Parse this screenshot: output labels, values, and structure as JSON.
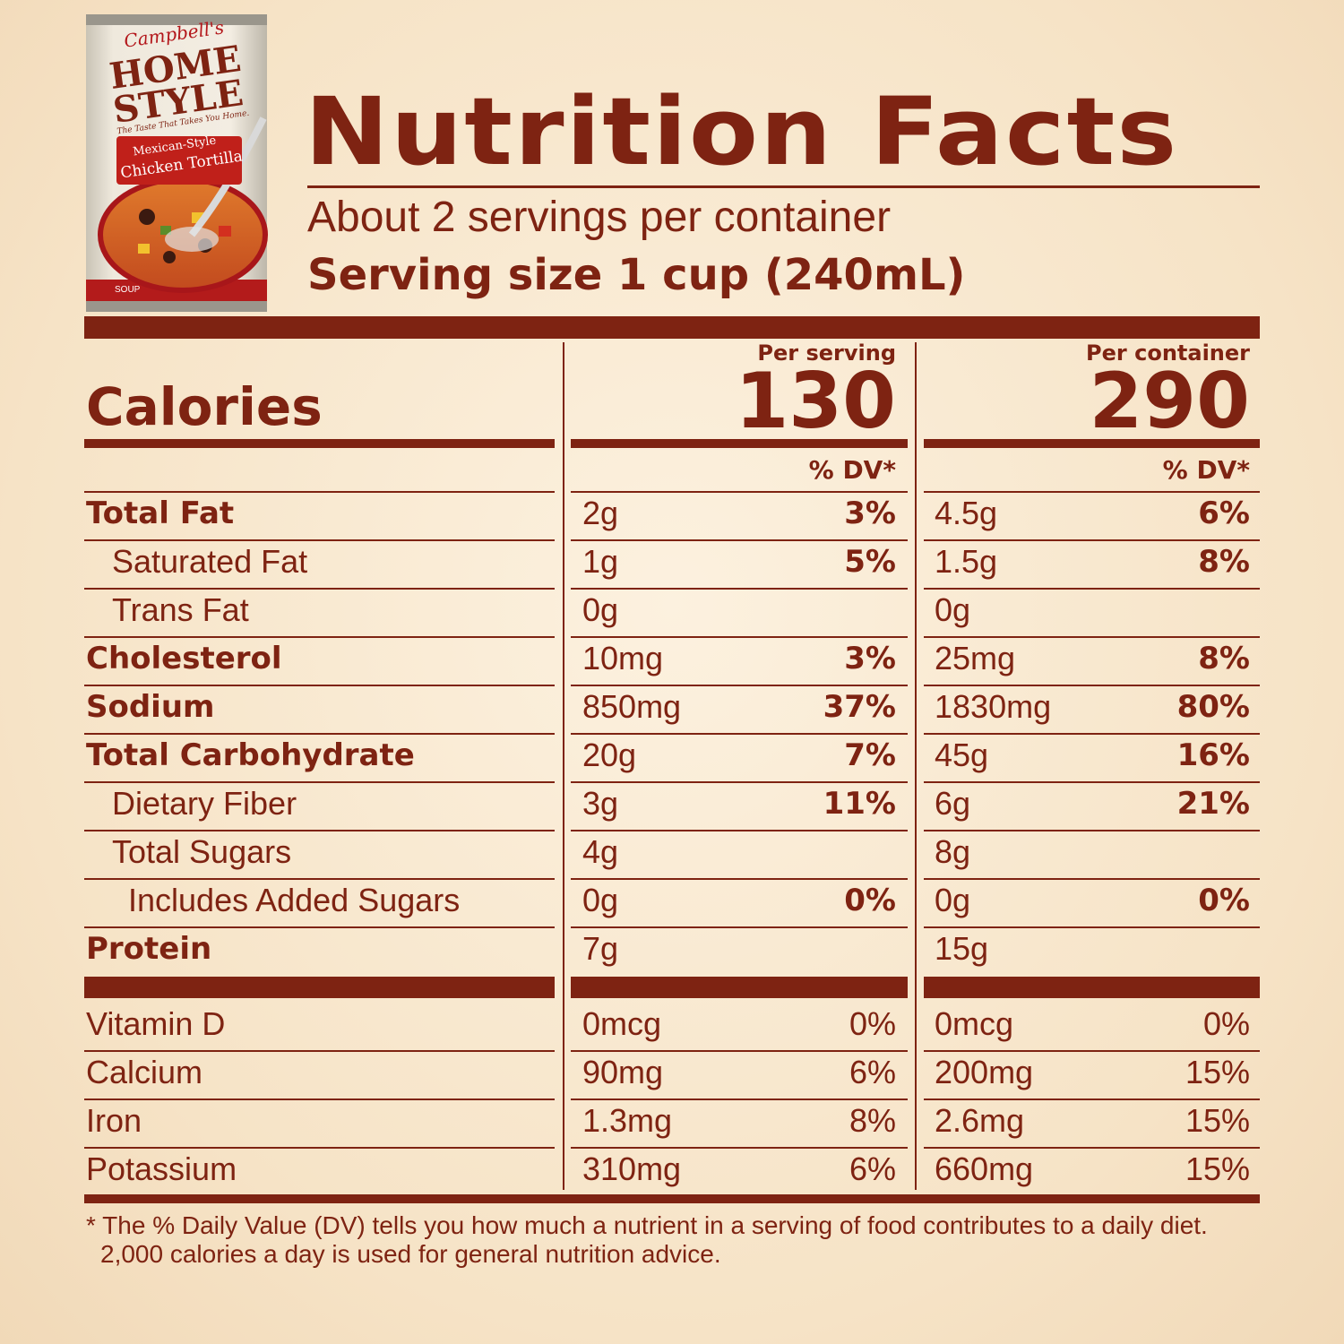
{
  "product": {
    "brand": "Campbell's",
    "line1": "HOME",
    "line2": "STYLE",
    "tagline": "The Taste That Takes You Home.",
    "variety1": "Mexican-Style",
    "variety2": "Chicken Tortilla",
    "category": "SOUP"
  },
  "title": "Nutrition Facts",
  "servings_per_container": "About 2 servings per container",
  "serving_size": "Serving size  1 cup (240mL)",
  "columns": {
    "per_serving": "Per serving",
    "per_container": "Per container",
    "dv_header": "% DV*"
  },
  "calories": {
    "label": "Calories",
    "per_serving": "130",
    "per_container": "290"
  },
  "nutrients": [
    {
      "label": "Total Fat",
      "amt1": "2g",
      "dv1": "3%",
      "amt2": "4.5g",
      "dv2": "6%"
    },
    {
      "label": "Saturated Fat",
      "amt1": "1g",
      "dv1": "5%",
      "amt2": "1.5g",
      "dv2": "8%"
    },
    {
      "label": "Trans Fat",
      "amt1": "0g",
      "dv1": "",
      "amt2": "0g",
      "dv2": ""
    },
    {
      "label": "Cholesterol",
      "amt1": "10mg",
      "dv1": "3%",
      "amt2": "25mg",
      "dv2": "8%"
    },
    {
      "label": "Sodium",
      "amt1": "850mg",
      "dv1": "37%",
      "amt2": "1830mg",
      "dv2": "80%"
    },
    {
      "label": "Total Carbohydrate",
      "amt1": "20g",
      "dv1": "7%",
      "amt2": "45g",
      "dv2": "16%"
    },
    {
      "label": "Dietary Fiber",
      "amt1": "3g",
      "dv1": "11%",
      "amt2": "6g",
      "dv2": "21%"
    },
    {
      "label": "Total Sugars",
      "amt1": "4g",
      "dv1": "",
      "amt2": "8g",
      "dv2": ""
    },
    {
      "label": "Includes Added Sugars",
      "amt1": "0g",
      "dv1": "0%",
      "amt2": "0g",
      "dv2": "0%"
    },
    {
      "label": "Protein",
      "amt1": "7g",
      "dv1": "",
      "amt2": "15g",
      "dv2": ""
    }
  ],
  "vitamins": [
    {
      "label": "Vitamin D",
      "amt1": "0mcg",
      "dv1": "0%",
      "amt2": "0mcg",
      "dv2": "0%"
    },
    {
      "label": "Calcium",
      "amt1": "90mg",
      "dv1": "6%",
      "amt2": "200mg",
      "dv2": "15%"
    },
    {
      "label": "Iron",
      "amt1": "1.3mg",
      "dv1": "8%",
      "amt2": "2.6mg",
      "dv2": "15%"
    },
    {
      "label": "Potassium",
      "amt1": "310mg",
      "dv1": "6%",
      "amt2": "660mg",
      "dv2": "15%"
    }
  ],
  "footnote": {
    "line1": "* The % Daily Value (DV) tells you how much a nutrient in a serving of food contributes to a daily diet.",
    "line2": "2,000 calories a day is used for general nutrition advice."
  }
}
